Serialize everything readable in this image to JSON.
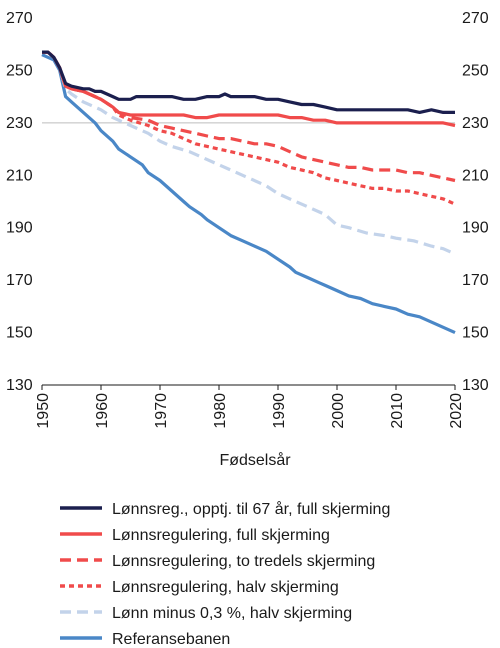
{
  "chart_data": {
    "type": "line",
    "xlabel": "Fødselsår",
    "ylabel": "",
    "xlim": [
      1950,
      2020
    ],
    "ylim": [
      130,
      270
    ],
    "xticks": [
      1950,
      1960,
      1970,
      1980,
      1990,
      2000,
      2010,
      2020
    ],
    "yticks": [
      130,
      150,
      170,
      190,
      210,
      230,
      250,
      270
    ],
    "grid": "horizontal at 230",
    "legend_position": "bottom",
    "series": [
      {
        "name": "Lønnsreg., opptj. til 67 år, full skjerming",
        "color": "#1b1f4e",
        "style": "solid",
        "points": [
          [
            1950,
            257
          ],
          [
            1951,
            257
          ],
          [
            1952,
            255
          ],
          [
            1953,
            251
          ],
          [
            1954,
            245
          ],
          [
            1955,
            244
          ],
          [
            1957,
            243
          ],
          [
            1958,
            243
          ],
          [
            1959,
            242
          ],
          [
            1960,
            242
          ],
          [
            1962,
            240
          ],
          [
            1963,
            239
          ],
          [
            1965,
            239
          ],
          [
            1966,
            240
          ],
          [
            1968,
            240
          ],
          [
            1970,
            240
          ],
          [
            1972,
            240
          ],
          [
            1974,
            239
          ],
          [
            1976,
            239
          ],
          [
            1978,
            240
          ],
          [
            1980,
            240
          ],
          [
            1981,
            241
          ],
          [
            1982,
            240
          ],
          [
            1984,
            240
          ],
          [
            1986,
            240
          ],
          [
            1988,
            239
          ],
          [
            1990,
            239
          ],
          [
            1992,
            238
          ],
          [
            1994,
            237
          ],
          [
            1996,
            237
          ],
          [
            1998,
            236
          ],
          [
            2000,
            235
          ],
          [
            2002,
            235
          ],
          [
            2004,
            235
          ],
          [
            2006,
            235
          ],
          [
            2008,
            235
          ],
          [
            2010,
            235
          ],
          [
            2012,
            235
          ],
          [
            2014,
            234
          ],
          [
            2016,
            235
          ],
          [
            2018,
            234
          ],
          [
            2020,
            234
          ]
        ]
      },
      {
        "name": "Lønnsregulering, full skjerming",
        "color": "#f04b4b",
        "style": "solid",
        "points": [
          [
            1950,
            257
          ],
          [
            1951,
            257
          ],
          [
            1952,
            255
          ],
          [
            1953,
            251
          ],
          [
            1954,
            244
          ],
          [
            1955,
            243
          ],
          [
            1957,
            242
          ],
          [
            1958,
            241
          ],
          [
            1960,
            239
          ],
          [
            1962,
            236
          ],
          [
            1963,
            234
          ],
          [
            1965,
            233
          ],
          [
            1967,
            233
          ],
          [
            1968,
            233
          ],
          [
            1970,
            233
          ],
          [
            1972,
            233
          ],
          [
            1974,
            233
          ],
          [
            1976,
            232
          ],
          [
            1978,
            232
          ],
          [
            1980,
            233
          ],
          [
            1982,
            233
          ],
          [
            1984,
            233
          ],
          [
            1986,
            233
          ],
          [
            1988,
            233
          ],
          [
            1990,
            233
          ],
          [
            1992,
            232
          ],
          [
            1994,
            232
          ],
          [
            1996,
            231
          ],
          [
            1998,
            231
          ],
          [
            2000,
            230
          ],
          [
            2002,
            230
          ],
          [
            2004,
            230
          ],
          [
            2006,
            230
          ],
          [
            2008,
            230
          ],
          [
            2010,
            230
          ],
          [
            2012,
            230
          ],
          [
            2014,
            230
          ],
          [
            2016,
            230
          ],
          [
            2018,
            230
          ],
          [
            2020,
            229
          ]
        ]
      },
      {
        "name": "Lønnsregulering, to tredels skjerming",
        "color": "#f04b4b",
        "style": "dashed",
        "points": [
          [
            1950,
            257
          ],
          [
            1951,
            257
          ],
          [
            1952,
            255
          ],
          [
            1953,
            251
          ],
          [
            1954,
            244
          ],
          [
            1955,
            243
          ],
          [
            1957,
            242
          ],
          [
            1958,
            241
          ],
          [
            1960,
            239
          ],
          [
            1962,
            236
          ],
          [
            1963,
            234
          ],
          [
            1965,
            232
          ],
          [
            1968,
            231
          ],
          [
            1970,
            229
          ],
          [
            1972,
            228
          ],
          [
            1974,
            227
          ],
          [
            1976,
            226
          ],
          [
            1978,
            225
          ],
          [
            1980,
            224
          ],
          [
            1982,
            224
          ],
          [
            1984,
            223
          ],
          [
            1986,
            222
          ],
          [
            1988,
            222
          ],
          [
            1990,
            221
          ],
          [
            1992,
            219
          ],
          [
            1994,
            217
          ],
          [
            1996,
            216
          ],
          [
            1998,
            215
          ],
          [
            2000,
            214
          ],
          [
            2002,
            213
          ],
          [
            2004,
            213
          ],
          [
            2006,
            212
          ],
          [
            2008,
            212
          ],
          [
            2010,
            212
          ],
          [
            2012,
            211
          ],
          [
            2014,
            211
          ],
          [
            2016,
            210
          ],
          [
            2018,
            209
          ],
          [
            2020,
            208
          ]
        ]
      },
      {
        "name": "Lønnsregulering, halv skjerming",
        "color": "#f04b4b",
        "style": "dotted",
        "points": [
          [
            1950,
            257
          ],
          [
            1951,
            257
          ],
          [
            1952,
            255
          ],
          [
            1953,
            251
          ],
          [
            1954,
            244
          ],
          [
            1955,
            243
          ],
          [
            1957,
            242
          ],
          [
            1958,
            241
          ],
          [
            1960,
            239
          ],
          [
            1962,
            236
          ],
          [
            1963,
            233
          ],
          [
            1965,
            231
          ],
          [
            1968,
            229
          ],
          [
            1970,
            227
          ],
          [
            1972,
            226
          ],
          [
            1974,
            224
          ],
          [
            1976,
            222
          ],
          [
            1978,
            221
          ],
          [
            1980,
            220
          ],
          [
            1982,
            219
          ],
          [
            1984,
            218
          ],
          [
            1986,
            217
          ],
          [
            1988,
            216
          ],
          [
            1990,
            215
          ],
          [
            1992,
            213
          ],
          [
            1994,
            212
          ],
          [
            1996,
            211
          ],
          [
            1998,
            209
          ],
          [
            2000,
            208
          ],
          [
            2002,
            207
          ],
          [
            2004,
            206
          ],
          [
            2006,
            205
          ],
          [
            2008,
            205
          ],
          [
            2010,
            204
          ],
          [
            2012,
            204
          ],
          [
            2014,
            203
          ],
          [
            2016,
            202
          ],
          [
            2018,
            201
          ],
          [
            2020,
            199
          ]
        ]
      },
      {
        "name": "Lønn minus 0,3 %, halv skjerming",
        "color": "#c3d3ea",
        "style": "dashed",
        "points": [
          [
            1950,
            257
          ],
          [
            1951,
            257
          ],
          [
            1952,
            255
          ],
          [
            1953,
            251
          ],
          [
            1954,
            243
          ],
          [
            1955,
            241
          ],
          [
            1957,
            238
          ],
          [
            1960,
            235
          ],
          [
            1962,
            232
          ],
          [
            1965,
            229
          ],
          [
            1968,
            226
          ],
          [
            1970,
            223
          ],
          [
            1972,
            221
          ],
          [
            1975,
            219
          ],
          [
            1978,
            216
          ],
          [
            1980,
            214
          ],
          [
            1982,
            212
          ],
          [
            1985,
            209
          ],
          [
            1988,
            206
          ],
          [
            1990,
            203
          ],
          [
            1992,
            201
          ],
          [
            1995,
            198
          ],
          [
            1998,
            195
          ],
          [
            2000,
            191
          ],
          [
            2002,
            190
          ],
          [
            2005,
            188
          ],
          [
            2008,
            187
          ],
          [
            2010,
            186
          ],
          [
            2013,
            185
          ],
          [
            2016,
            183
          ],
          [
            2018,
            182
          ],
          [
            2020,
            180
          ]
        ]
      },
      {
        "name": "Referansebanen",
        "color": "#4a87c7",
        "style": "solid",
        "points": [
          [
            1950,
            256
          ],
          [
            1951,
            255
          ],
          [
            1952,
            254
          ],
          [
            1953,
            250
          ],
          [
            1954,
            240
          ],
          [
            1955,
            238
          ],
          [
            1957,
            234
          ],
          [
            1959,
            230
          ],
          [
            1960,
            227
          ],
          [
            1962,
            223
          ],
          [
            1963,
            220
          ],
          [
            1965,
            217
          ],
          [
            1967,
            214
          ],
          [
            1968,
            211
          ],
          [
            1970,
            208
          ],
          [
            1972,
            204
          ],
          [
            1974,
            200
          ],
          [
            1975,
            198
          ],
          [
            1977,
            195
          ],
          [
            1978,
            193
          ],
          [
            1980,
            190
          ],
          [
            1982,
            187
          ],
          [
            1984,
            185
          ],
          [
            1986,
            183
          ],
          [
            1988,
            181
          ],
          [
            1990,
            178
          ],
          [
            1992,
            175
          ],
          [
            1993,
            173
          ],
          [
            1995,
            171
          ],
          [
            1997,
            169
          ],
          [
            1998,
            168
          ],
          [
            2000,
            166
          ],
          [
            2002,
            164
          ],
          [
            2004,
            163
          ],
          [
            2006,
            161
          ],
          [
            2008,
            160
          ],
          [
            2010,
            159
          ],
          [
            2012,
            157
          ],
          [
            2014,
            156
          ],
          [
            2016,
            154
          ],
          [
            2018,
            152
          ],
          [
            2020,
            150
          ]
        ]
      }
    ]
  }
}
